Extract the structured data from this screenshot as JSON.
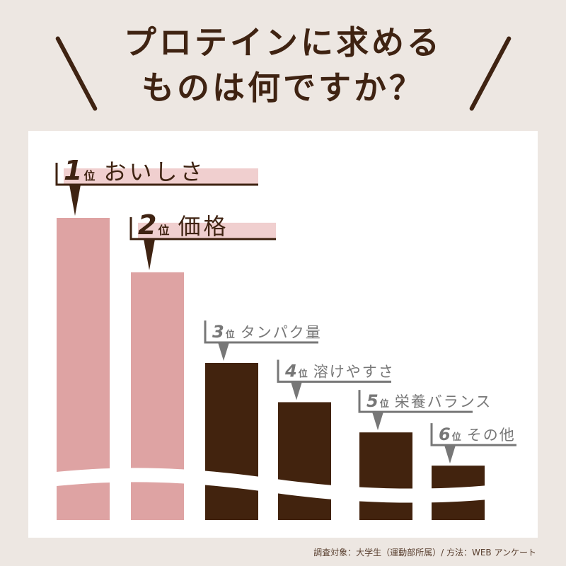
{
  "title_line1": "プロテインに求める",
  "title_line2": "ものは何ですか？",
  "footer": "調査対象：大学生（運動部所属）/ 方法：WEB アンケート",
  "colors": {
    "background": "#ede7e2",
    "top": "#dea3a3",
    "rest": "#42230e",
    "title": "#3f2312",
    "highlight": "#f0cfcf",
    "label_gray": "#777777"
  },
  "chart_data": {
    "type": "bar",
    "title": "プロテインに求めるものは何ですか？",
    "axis_break": true,
    "items": [
      {
        "rank_num": "1",
        "rank_suffix": "位",
        "label": "おいしさ",
        "relative_value": 100,
        "highlight": true
      },
      {
        "rank_num": "2",
        "rank_suffix": "位",
        "label": "価格",
        "relative_value": 82,
        "highlight": true
      },
      {
        "rank_num": "3",
        "rank_suffix": "位",
        "label": "タンパク量",
        "relative_value": 52,
        "highlight": false
      },
      {
        "rank_num": "4",
        "rank_suffix": "位",
        "label": "溶けやすさ",
        "relative_value": 39,
        "highlight": false
      },
      {
        "rank_num": "5",
        "rank_suffix": "位",
        "label": "栄養バランス",
        "relative_value": 29,
        "highlight": false
      },
      {
        "rank_num": "6",
        "rank_suffix": "位",
        "label": "その他",
        "relative_value": 18,
        "highlight": false
      }
    ]
  }
}
